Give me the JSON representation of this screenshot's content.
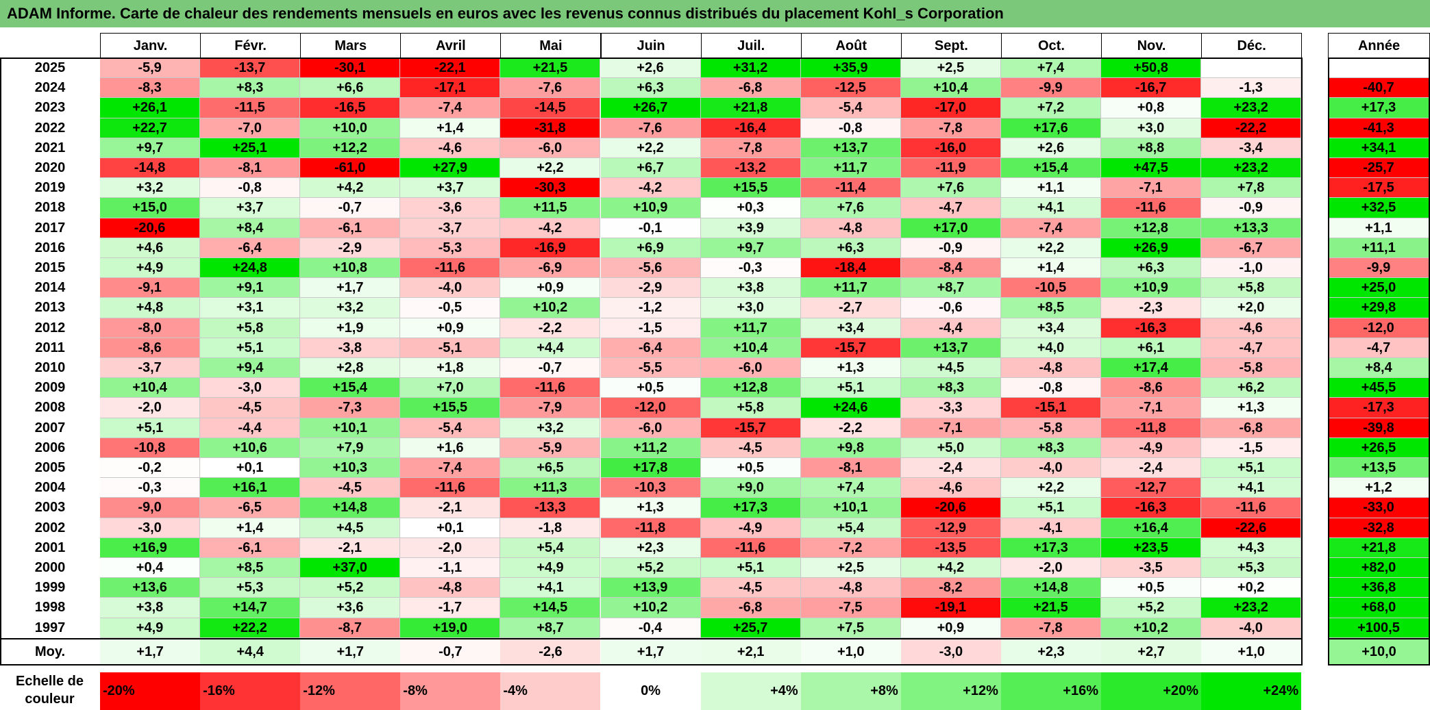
{
  "title": "ADAM Informe. Carte de chaleur des rendements mensuels en euros avec les revenus connus distribués du placement Kohl_s Corporation",
  "chart_data": {
    "type": "heatmap",
    "months": [
      "Janv.",
      "Févr.",
      "Mars",
      "Avril",
      "Mai",
      "Juin",
      "Juil.",
      "Août",
      "Sept.",
      "Oct.",
      "Nov.",
      "Déc."
    ],
    "annual_label": "Année",
    "average_label": "Moy.",
    "rows": [
      {
        "year": "2025",
        "values": [
          -5.9,
          -13.7,
          -30.1,
          -22.1,
          21.5,
          2.6,
          31.2,
          35.9,
          2.5,
          7.4,
          50.8,
          null
        ],
        "annual": null
      },
      {
        "year": "2024",
        "values": [
          -8.3,
          8.3,
          6.6,
          -17.1,
          -7.6,
          6.3,
          -6.8,
          -12.5,
          10.4,
          -9.9,
          -16.7,
          -1.3
        ],
        "annual": -40.7
      },
      {
        "year": "2023",
        "values": [
          26.1,
          -11.5,
          -16.5,
          -7.4,
          -14.5,
          26.7,
          21.8,
          -5.4,
          -17.0,
          7.2,
          0.8,
          23.2
        ],
        "annual": 17.3
      },
      {
        "year": "2022",
        "values": [
          22.7,
          -7.0,
          10.0,
          1.4,
          -31.8,
          -7.6,
          -16.4,
          -0.8,
          -7.8,
          17.6,
          3.0,
          -22.2
        ],
        "annual": -41.3
      },
      {
        "year": "2021",
        "values": [
          9.7,
          25.1,
          12.2,
          -4.6,
          -6.0,
          2.2,
          -7.8,
          13.7,
          -16.0,
          2.6,
          8.8,
          -3.4
        ],
        "annual": 34.1
      },
      {
        "year": "2020",
        "values": [
          -14.8,
          -8.1,
          -61.0,
          27.9,
          2.2,
          6.7,
          -13.2,
          11.7,
          -11.9,
          15.4,
          47.5,
          23.2
        ],
        "annual": -25.7
      },
      {
        "year": "2019",
        "values": [
          3.2,
          -0.8,
          4.2,
          3.7,
          -30.3,
          -4.2,
          15.5,
          -11.4,
          7.6,
          1.1,
          -7.1,
          7.8
        ],
        "annual": -17.5
      },
      {
        "year": "2018",
        "values": [
          15.0,
          3.7,
          -0.7,
          -3.6,
          11.5,
          10.9,
          0.3,
          7.6,
          -4.7,
          4.1,
          -11.6,
          -0.9
        ],
        "annual": 32.5
      },
      {
        "year": "2017",
        "values": [
          -20.6,
          8.4,
          -6.1,
          -3.7,
          -4.2,
          -0.1,
          3.9,
          -4.8,
          17.0,
          -7.4,
          12.8,
          13.3
        ],
        "annual": 1.1
      },
      {
        "year": "2016",
        "values": [
          4.6,
          -6.4,
          -2.9,
          -5.3,
          -16.9,
          6.9,
          9.7,
          6.3,
          -0.9,
          2.2,
          26.9,
          -6.7
        ],
        "annual": 11.1
      },
      {
        "year": "2015",
        "values": [
          4.9,
          24.8,
          10.8,
          -11.6,
          -6.9,
          -5.6,
          -0.3,
          -18.4,
          -8.4,
          1.4,
          6.3,
          -1.0
        ],
        "annual": -9.9
      },
      {
        "year": "2014",
        "values": [
          -9.1,
          9.1,
          1.7,
          -4.0,
          0.9,
          -2.9,
          3.8,
          11.7,
          8.7,
          -10.5,
          10.9,
          5.8
        ],
        "annual": 25.0
      },
      {
        "year": "2013",
        "values": [
          4.8,
          3.1,
          3.2,
          -0.5,
          10.2,
          -1.2,
          3.0,
          -2.7,
          -0.6,
          8.5,
          -2.3,
          2.0
        ],
        "annual": 29.8
      },
      {
        "year": "2012",
        "values": [
          -8.0,
          5.8,
          1.9,
          0.9,
          -2.2,
          -1.5,
          11.7,
          3.4,
          -4.4,
          3.4,
          -16.3,
          -4.6
        ],
        "annual": -12.0
      },
      {
        "year": "2011",
        "values": [
          -8.6,
          5.1,
          -3.8,
          -5.1,
          4.4,
          -6.4,
          10.4,
          -15.7,
          13.7,
          4.0,
          6.1,
          -4.7
        ],
        "annual": -4.7
      },
      {
        "year": "2010",
        "values": [
          -3.7,
          9.4,
          2.8,
          1.8,
          -0.7,
          -5.5,
          -6.0,
          1.3,
          4.5,
          -4.8,
          17.4,
          -5.8
        ],
        "annual": 8.4
      },
      {
        "year": "2009",
        "values": [
          10.4,
          -3.0,
          15.4,
          7.0,
          -11.6,
          0.5,
          12.8,
          5.1,
          8.3,
          -0.8,
          -8.6,
          6.2
        ],
        "annual": 45.5
      },
      {
        "year": "2008",
        "values": [
          -2.0,
          -4.5,
          -7.3,
          15.5,
          -7.9,
          -12.0,
          5.8,
          24.6,
          -3.3,
          -15.1,
          -7.1,
          1.3
        ],
        "annual": -17.3
      },
      {
        "year": "2007",
        "values": [
          5.1,
          -4.4,
          10.1,
          -5.4,
          3.2,
          -6.0,
          -15.7,
          -2.2,
          -7.1,
          -5.8,
          -11.8,
          -6.8
        ],
        "annual": -39.8
      },
      {
        "year": "2006",
        "values": [
          -10.8,
          10.6,
          7.9,
          1.6,
          -5.9,
          11.2,
          -4.5,
          9.8,
          5.0,
          8.3,
          -4.9,
          -1.5
        ],
        "annual": 26.5
      },
      {
        "year": "2005",
        "values": [
          -0.2,
          0.1,
          10.3,
          -7.4,
          6.5,
          17.8,
          0.5,
          -8.1,
          -2.4,
          -4.0,
          -2.4,
          5.1
        ],
        "annual": 13.5
      },
      {
        "year": "2004",
        "values": [
          -0.3,
          16.1,
          -4.5,
          -11.6,
          11.3,
          -10.3,
          9.0,
          7.4,
          -4.6,
          2.2,
          -12.7,
          4.1
        ],
        "annual": 1.2
      },
      {
        "year": "2003",
        "values": [
          -9.0,
          -6.5,
          14.8,
          -2.1,
          -13.3,
          1.3,
          17.3,
          10.1,
          -20.6,
          5.1,
          -16.3,
          -11.6
        ],
        "annual": -33.0
      },
      {
        "year": "2002",
        "values": [
          -3.0,
          1.4,
          4.5,
          0.1,
          -1.8,
          -11.8,
          -4.9,
          5.4,
          -12.9,
          -4.1,
          16.4,
          -22.6
        ],
        "annual": -32.8
      },
      {
        "year": "2001",
        "values": [
          16.9,
          -6.1,
          -2.1,
          -2.0,
          5.4,
          2.3,
          -11.6,
          -7.2,
          -13.5,
          17.3,
          23.5,
          4.3
        ],
        "annual": 21.8
      },
      {
        "year": "2000",
        "values": [
          0.4,
          8.5,
          37.0,
          -1.1,
          4.9,
          5.2,
          5.1,
          2.5,
          4.2,
          -2.0,
          -3.5,
          5.3
        ],
        "annual": 82.0
      },
      {
        "year": "1999",
        "values": [
          13.6,
          5.3,
          5.2,
          -4.8,
          4.1,
          13.9,
          -4.5,
          -4.8,
          -8.2,
          14.8,
          0.5,
          0.2
        ],
        "annual": 36.8
      },
      {
        "year": "1998",
        "values": [
          3.8,
          14.7,
          3.6,
          -1.7,
          14.5,
          10.2,
          -6.8,
          -7.5,
          -19.1,
          21.5,
          5.2,
          23.2
        ],
        "annual": 68.0
      },
      {
        "year": "1997",
        "values": [
          4.9,
          22.2,
          -8.7,
          19.0,
          8.7,
          -0.4,
          25.7,
          7.5,
          0.9,
          -7.8,
          10.2,
          -4.0
        ],
        "annual": 100.5
      }
    ],
    "averages": [
      1.7,
      4.4,
      1.7,
      -0.7,
      -2.6,
      1.7,
      2.1,
      1.0,
      -3.0,
      2.3,
      2.7,
      1.0
    ],
    "annual_average": 10.0,
    "legend": {
      "label": "Echelle de\ncouleur",
      "steps": [
        -20,
        -16,
        -12,
        -8,
        -4,
        0,
        4,
        8,
        12,
        16,
        20,
        24
      ],
      "step_labels": [
        "-20%",
        "-16%",
        "-12%",
        "-8%",
        "-4%",
        "0%",
        "+4%",
        "+8%",
        "+12%",
        "+16%",
        "+20%",
        "+24%"
      ]
    }
  }
}
